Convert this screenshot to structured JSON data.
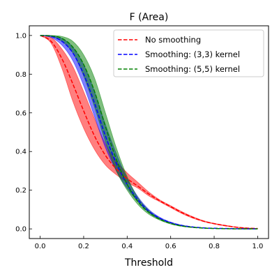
{
  "chart_data": {
    "type": "line",
    "title": "F (Area)",
    "xlabel": "Threshold",
    "ylabel": "",
    "xlim": [
      -0.05,
      1.05
    ],
    "ylim": [
      -0.05,
      1.05
    ],
    "xticks": [
      0.0,
      0.2,
      0.4,
      0.6,
      0.8,
      1.0
    ],
    "xtick_labels": [
      "0.0",
      "0.2",
      "0.4",
      "0.6",
      "0.8",
      "1.0"
    ],
    "yticks": [
      0.0,
      0.2,
      0.4,
      0.6,
      0.8,
      1.0
    ],
    "ytick_labels": [
      "0.0",
      "0.2",
      "0.4",
      "0.6",
      "0.8",
      "1.0"
    ],
    "grid": false,
    "legend_position": "top-right",
    "series": [
      {
        "name": "No smoothing",
        "color": "#ff0000",
        "x": [
          0.0,
          0.05,
          0.1,
          0.15,
          0.2,
          0.25,
          0.3,
          0.35,
          0.4,
          0.45,
          0.5,
          0.55,
          0.6,
          0.65,
          0.7,
          0.75,
          0.8,
          0.85,
          0.9,
          0.95,
          1.0
        ],
        "y": [
          1.0,
          0.97,
          0.88,
          0.75,
          0.61,
          0.48,
          0.38,
          0.31,
          0.26,
          0.22,
          0.18,
          0.145,
          0.115,
          0.085,
          0.06,
          0.04,
          0.027,
          0.017,
          0.009,
          0.004,
          0.002
        ],
        "lower": [
          1.0,
          0.96,
          0.83,
          0.66,
          0.52,
          0.41,
          0.33,
          0.28,
          0.24,
          0.21,
          0.17,
          0.14,
          0.11,
          0.08,
          0.056,
          0.038,
          0.025,
          0.015,
          0.008,
          0.003,
          0.001
        ],
        "upper": [
          1.0,
          0.99,
          0.93,
          0.84,
          0.71,
          0.57,
          0.44,
          0.35,
          0.29,
          0.24,
          0.19,
          0.15,
          0.12,
          0.09,
          0.064,
          0.043,
          0.029,
          0.019,
          0.01,
          0.005,
          0.002
        ]
      },
      {
        "name": "Smoothing: (3,3) kernel",
        "color": "#0000ff",
        "x": [
          0.0,
          0.05,
          0.1,
          0.15,
          0.2,
          0.25,
          0.3,
          0.35,
          0.4,
          0.45,
          0.5,
          0.55,
          0.6,
          0.65,
          0.7,
          0.75,
          0.8,
          0.85,
          0.9,
          0.95,
          1.0
        ],
        "y": [
          1.0,
          0.995,
          0.97,
          0.91,
          0.8,
          0.65,
          0.48,
          0.34,
          0.23,
          0.15,
          0.09,
          0.055,
          0.032,
          0.018,
          0.01,
          0.005,
          0.003,
          0.002,
          0.001,
          0.0,
          0.0
        ],
        "lower": [
          1.0,
          0.99,
          0.95,
          0.87,
          0.74,
          0.58,
          0.42,
          0.3,
          0.21,
          0.14,
          0.085,
          0.05,
          0.03,
          0.016,
          0.009,
          0.005,
          0.003,
          0.001,
          0.0,
          0.0,
          0.0
        ],
        "upper": [
          1.0,
          1.0,
          0.985,
          0.94,
          0.85,
          0.71,
          0.54,
          0.39,
          0.26,
          0.165,
          0.1,
          0.06,
          0.035,
          0.02,
          0.011,
          0.006,
          0.003,
          0.002,
          0.001,
          0.0,
          0.0
        ]
      },
      {
        "name": "Smoothing: (5,5) kernel",
        "color": "#008000",
        "x": [
          0.0,
          0.05,
          0.1,
          0.15,
          0.2,
          0.25,
          0.3,
          0.35,
          0.4,
          0.45,
          0.5,
          0.55,
          0.6,
          0.65,
          0.7,
          0.75,
          0.8,
          0.85,
          0.9,
          0.95,
          1.0
        ],
        "y": [
          1.0,
          0.998,
          0.985,
          0.94,
          0.85,
          0.71,
          0.53,
          0.36,
          0.23,
          0.14,
          0.085,
          0.05,
          0.028,
          0.015,
          0.008,
          0.004,
          0.002,
          0.001,
          0.0,
          0.0,
          0.0
        ],
        "lower": [
          1.0,
          0.995,
          0.97,
          0.91,
          0.79,
          0.63,
          0.45,
          0.3,
          0.2,
          0.125,
          0.075,
          0.045,
          0.025,
          0.013,
          0.007,
          0.004,
          0.002,
          0.001,
          0.0,
          0.0,
          0.0
        ],
        "upper": [
          1.0,
          1.0,
          0.995,
          0.97,
          0.9,
          0.78,
          0.6,
          0.42,
          0.27,
          0.16,
          0.095,
          0.055,
          0.031,
          0.017,
          0.009,
          0.005,
          0.002,
          0.001,
          0.0,
          0.0,
          0.0
        ]
      }
    ]
  }
}
